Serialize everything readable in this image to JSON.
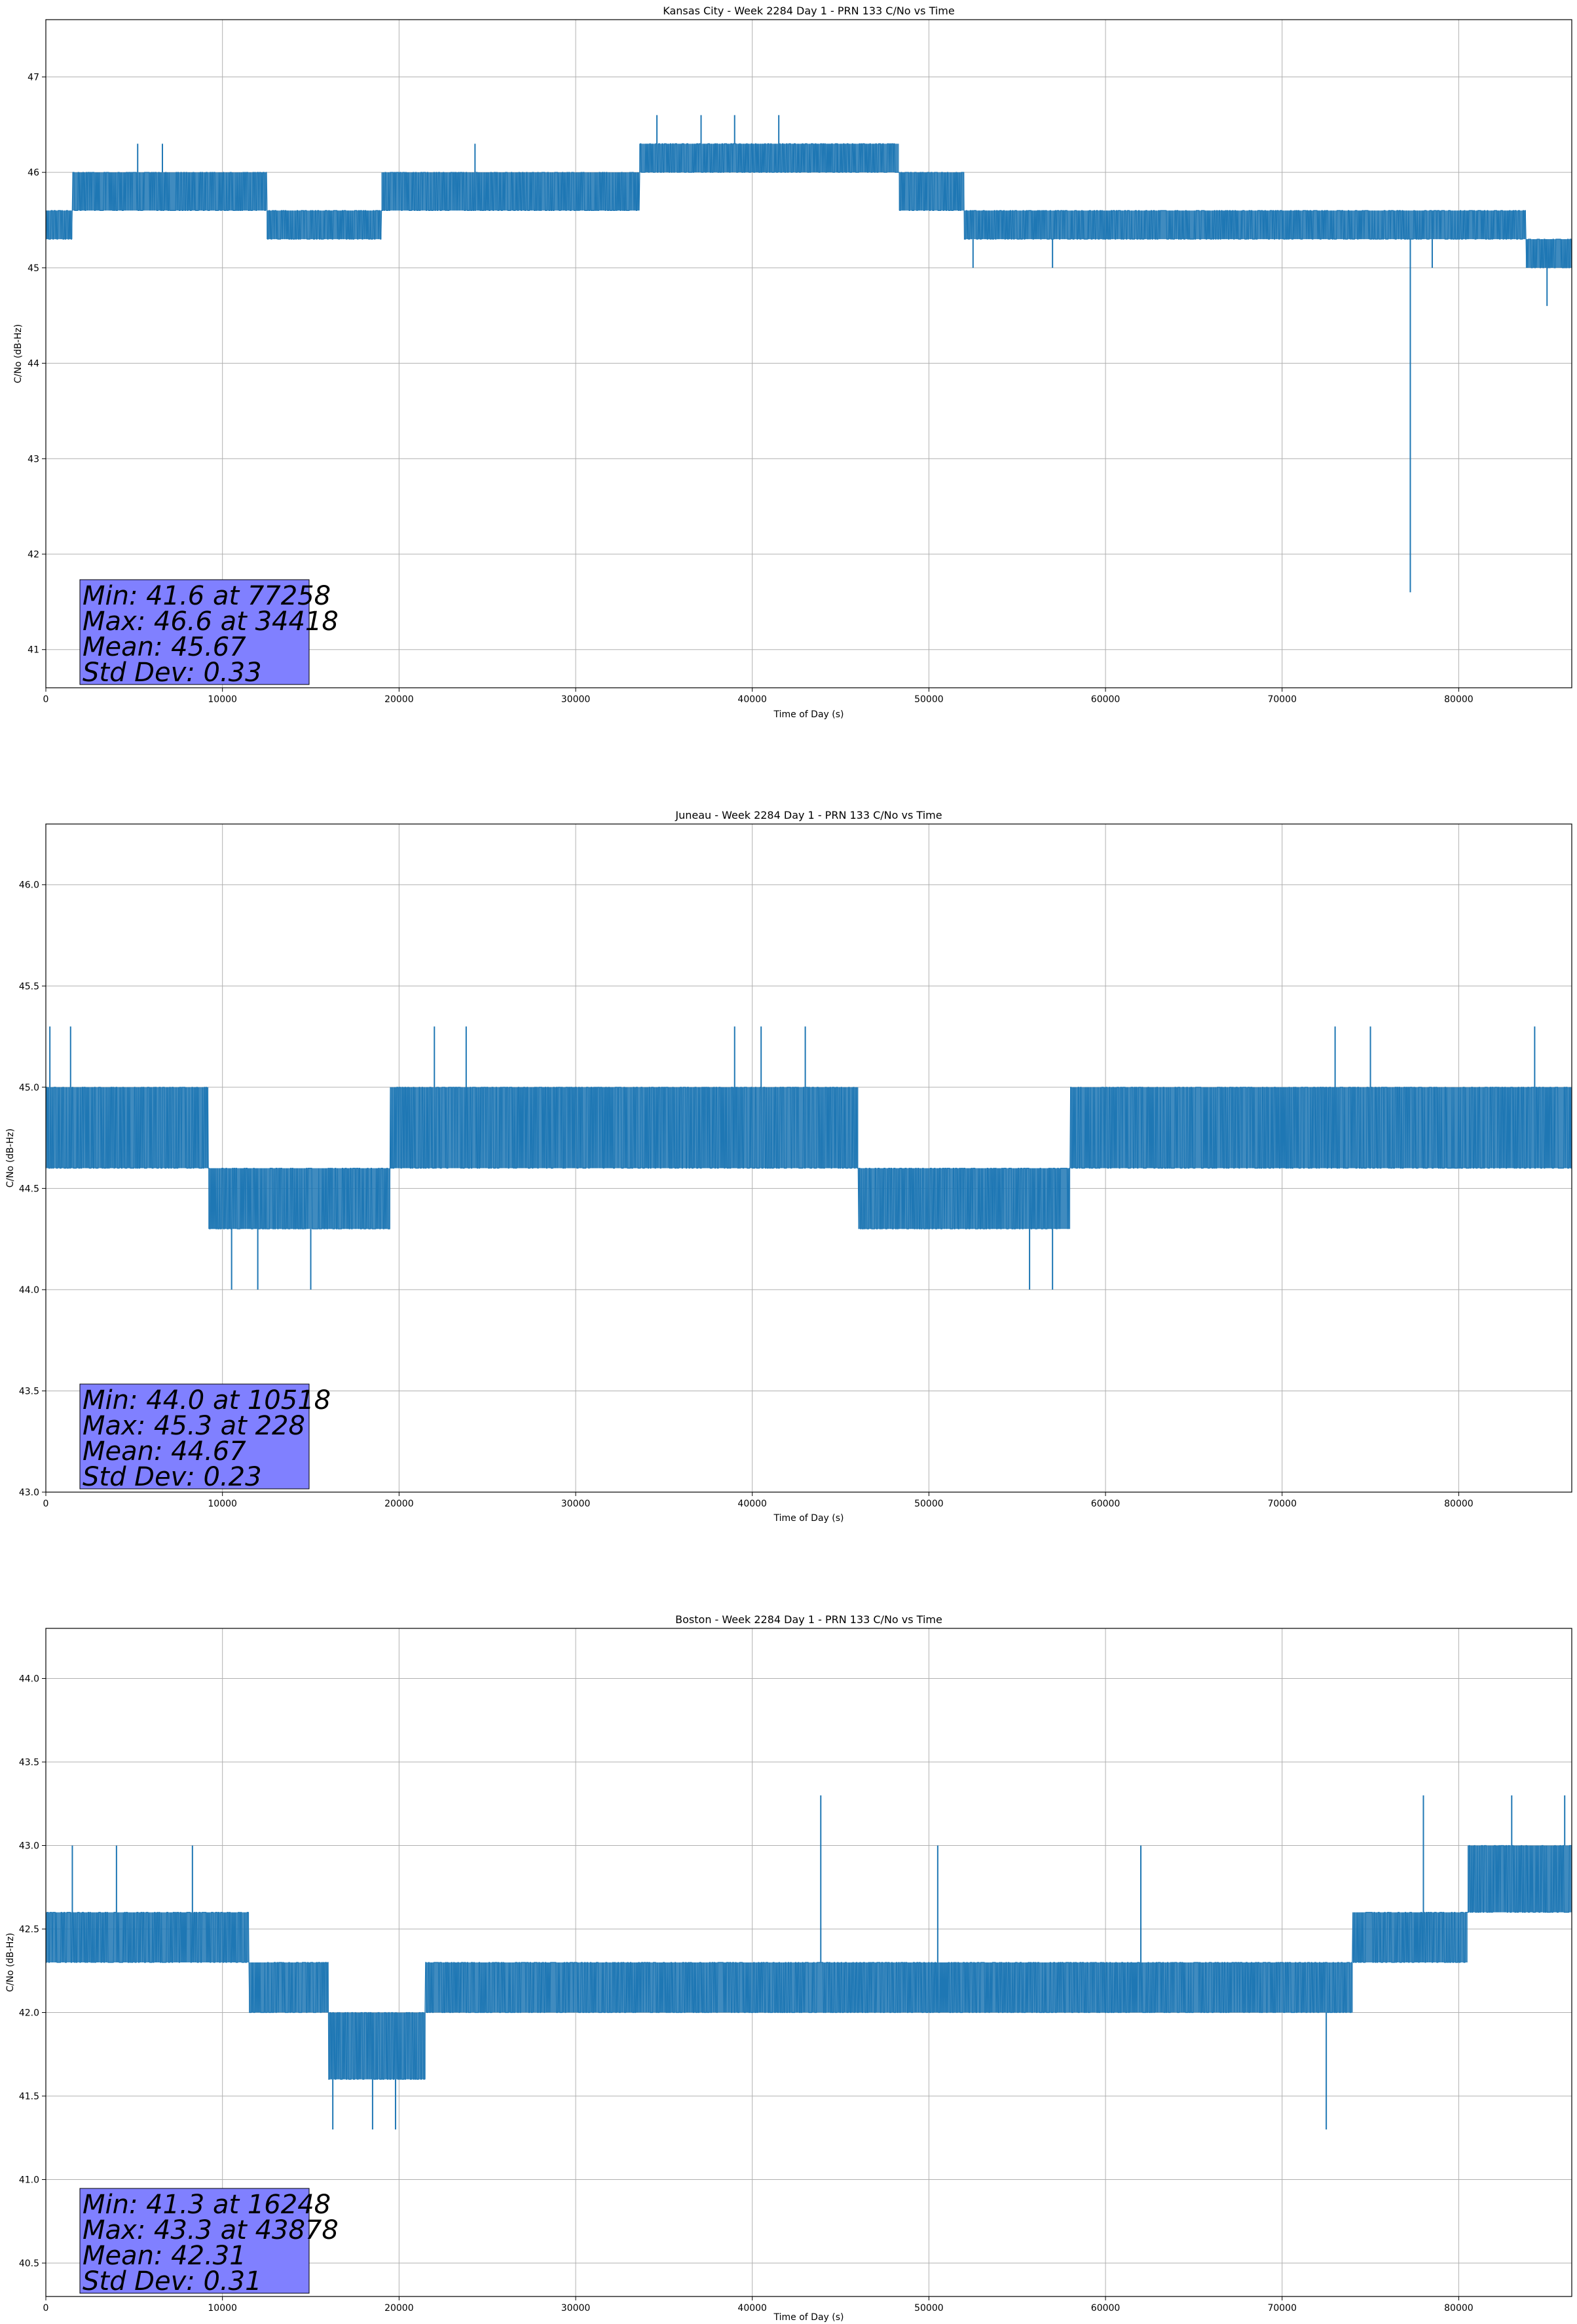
{
  "chart_data": [
    {
      "type": "line",
      "title": "Kansas City - Week 2284 Day 1 - PRN 133 C/No vs Time",
      "xlabel": "Time of Day (s)",
      "ylabel": "C/No (dB-Hz)",
      "xlim": [
        0,
        86400
      ],
      "ylim": [
        40.6,
        47.6
      ],
      "xticks": [
        0,
        10000,
        20000,
        30000,
        40000,
        50000,
        60000,
        70000,
        80000
      ],
      "xtick_labels": [
        "0",
        "10000",
        "20000",
        "30000",
        "40000",
        "50000",
        "60000",
        "70000",
        "80000"
      ],
      "yticks": [
        41,
        42,
        43,
        44,
        45,
        46,
        47
      ],
      "ytick_labels": [
        "41",
        "42",
        "43",
        "44",
        "45",
        "46",
        "47"
      ],
      "grid": true,
      "line_color": "#1f77b4",
      "segments": [
        {
          "x": [
            0,
            1500
          ],
          "lo": 45.3,
          "hi": 45.6
        },
        {
          "x": [
            1500,
            12500
          ],
          "lo": 45.6,
          "hi": 46.0
        },
        {
          "x": [
            12500,
            19000
          ],
          "lo": 45.3,
          "hi": 45.6
        },
        {
          "x": [
            19000,
            33600
          ],
          "lo": 45.6,
          "hi": 46.0
        },
        {
          "x": [
            33600,
            48300
          ],
          "lo": 46.0,
          "hi": 46.3
        },
        {
          "x": [
            48300,
            52000
          ],
          "lo": 45.6,
          "hi": 46.0
        },
        {
          "x": [
            52000,
            83800
          ],
          "lo": 45.3,
          "hi": 45.6
        },
        {
          "x": [
            83800,
            86400
          ],
          "lo": 45.0,
          "hi": 45.3
        }
      ],
      "spikes": [
        [
          5200,
          46.3
        ],
        [
          6600,
          46.3
        ],
        [
          24300,
          46.3
        ],
        [
          34600,
          46.6
        ],
        [
          37100,
          46.6
        ],
        [
          39000,
          46.6
        ],
        [
          41500,
          46.6
        ],
        [
          44800,
          46.3
        ],
        [
          52500,
          45.0
        ],
        [
          57000,
          45.0
        ],
        [
          77258,
          41.6
        ],
        [
          78500,
          45.0
        ],
        [
          85000,
          44.6
        ]
      ],
      "stats_lines": [
        "Min: 41.6 at 77258",
        "Max: 46.6 at 34418",
        "Mean: 45.67",
        "Std Dev: 0.33"
      ],
      "stats_box_color": "#8080ff"
    },
    {
      "type": "line",
      "title": "Juneau - Week 2284 Day 1 - PRN 133 C/No vs Time",
      "xlabel": "Time of Day (s)",
      "ylabel": "C/No (dB-Hz)",
      "xlim": [
        0,
        86400
      ],
      "ylim": [
        43.0,
        46.3
      ],
      "xticks": [
        0,
        10000,
        20000,
        30000,
        40000,
        50000,
        60000,
        70000,
        80000
      ],
      "xtick_labels": [
        "0",
        "10000",
        "20000",
        "30000",
        "40000",
        "50000",
        "60000",
        "70000",
        "80000"
      ],
      "yticks": [
        43.0,
        43.5,
        44.0,
        44.5,
        45.0,
        45.5,
        46.0
      ],
      "ytick_labels": [
        "43.0",
        "43.5",
        "44.0",
        "44.5",
        "45.0",
        "45.5",
        "46.0"
      ],
      "grid": true,
      "line_color": "#1f77b4",
      "segments": [
        {
          "x": [
            0,
            9200
          ],
          "lo": 44.6,
          "hi": 45.0
        },
        {
          "x": [
            9200,
            19500
          ],
          "lo": 44.3,
          "hi": 44.6
        },
        {
          "x": [
            19500,
            46000
          ],
          "lo": 44.6,
          "hi": 45.0
        },
        {
          "x": [
            46000,
            58000
          ],
          "lo": 44.3,
          "hi": 44.6
        },
        {
          "x": [
            58000,
            86400
          ],
          "lo": 44.6,
          "hi": 45.0
        }
      ],
      "spikes": [
        [
          228,
          45.3
        ],
        [
          1400,
          45.3
        ],
        [
          10518,
          44.0
        ],
        [
          12000,
          44.0
        ],
        [
          15000,
          44.0
        ],
        [
          22000,
          45.3
        ],
        [
          23800,
          45.3
        ],
        [
          39000,
          45.3
        ],
        [
          40500,
          45.3
        ],
        [
          43000,
          45.3
        ],
        [
          55700,
          44.0
        ],
        [
          57000,
          44.0
        ],
        [
          73000,
          45.3
        ],
        [
          75000,
          45.3
        ],
        [
          84300,
          45.3
        ]
      ],
      "stats_lines": [
        "Min: 44.0 at 10518",
        "Max: 45.3 at 228",
        "Mean: 44.67",
        "Std Dev: 0.23"
      ],
      "stats_box_color": "#8080ff"
    },
    {
      "type": "line",
      "title": "Boston - Week 2284 Day 1 - PRN 133 C/No vs Time",
      "xlabel": "Time of Day (s)",
      "ylabel": "C/No (dB-Hz)",
      "xlim": [
        0,
        86400
      ],
      "ylim": [
        40.3,
        44.3
      ],
      "xticks": [
        0,
        10000,
        20000,
        30000,
        40000,
        50000,
        60000,
        70000,
        80000
      ],
      "xtick_labels": [
        "0",
        "10000",
        "20000",
        "30000",
        "40000",
        "50000",
        "60000",
        "70000",
        "80000"
      ],
      "yticks": [
        40.5,
        41.0,
        41.5,
        42.0,
        42.5,
        43.0,
        43.5,
        44.0
      ],
      "ytick_labels": [
        "40.5",
        "41.0",
        "41.5",
        "42.0",
        "42.5",
        "43.0",
        "43.5",
        "44.0"
      ],
      "grid": true,
      "line_color": "#1f77b4",
      "segments": [
        {
          "x": [
            0,
            11500
          ],
          "lo": 42.3,
          "hi": 42.6
        },
        {
          "x": [
            11500,
            16000
          ],
          "lo": 42.0,
          "hi": 42.3
        },
        {
          "x": [
            16000,
            21500
          ],
          "lo": 41.6,
          "hi": 42.0
        },
        {
          "x": [
            21500,
            74000
          ],
          "lo": 42.0,
          "hi": 42.3
        },
        {
          "x": [
            74000,
            80500
          ],
          "lo": 42.3,
          "hi": 42.6
        },
        {
          "x": [
            80500,
            86400
          ],
          "lo": 42.6,
          "hi": 43.0
        }
      ],
      "spikes": [
        [
          1500,
          43.0
        ],
        [
          4000,
          43.0
        ],
        [
          8300,
          43.0
        ],
        [
          16248,
          41.3
        ],
        [
          18500,
          41.3
        ],
        [
          19800,
          41.3
        ],
        [
          43878,
          43.3
        ],
        [
          50500,
          43.0
        ],
        [
          62000,
          43.0
        ],
        [
          72500,
          41.3
        ],
        [
          78000,
          43.3
        ],
        [
          83000,
          43.3
        ],
        [
          86000,
          43.3
        ]
      ],
      "stats_lines": [
        "Min: 41.3 at 16248",
        "Max: 43.3 at 43878",
        "Mean: 42.31",
        "Std Dev: 0.31"
      ],
      "stats_box_color": "#8080ff"
    }
  ]
}
